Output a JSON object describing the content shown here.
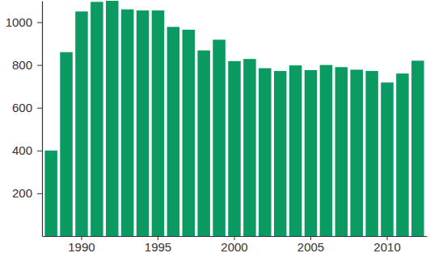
{
  "chart_data": {
    "type": "bar",
    "categories": [
      null,
      null,
      "1990",
      null,
      null,
      null,
      null,
      "1995",
      null,
      null,
      null,
      null,
      "2000",
      null,
      null,
      null,
      null,
      "2005",
      null,
      null,
      null,
      null,
      "2010",
      null,
      null
    ],
    "values": [
      400,
      860,
      1050,
      1095,
      1100,
      1060,
      1055,
      1055,
      978,
      965,
      868,
      918,
      818,
      828,
      785,
      772,
      798,
      776,
      800,
      790,
      778,
      772,
      718,
      760,
      820
    ],
    "color": "#0a9a62",
    "ylim": [
      0,
      1100
    ],
    "yticks": [
      200,
      400,
      600,
      800,
      1000
    ]
  }
}
